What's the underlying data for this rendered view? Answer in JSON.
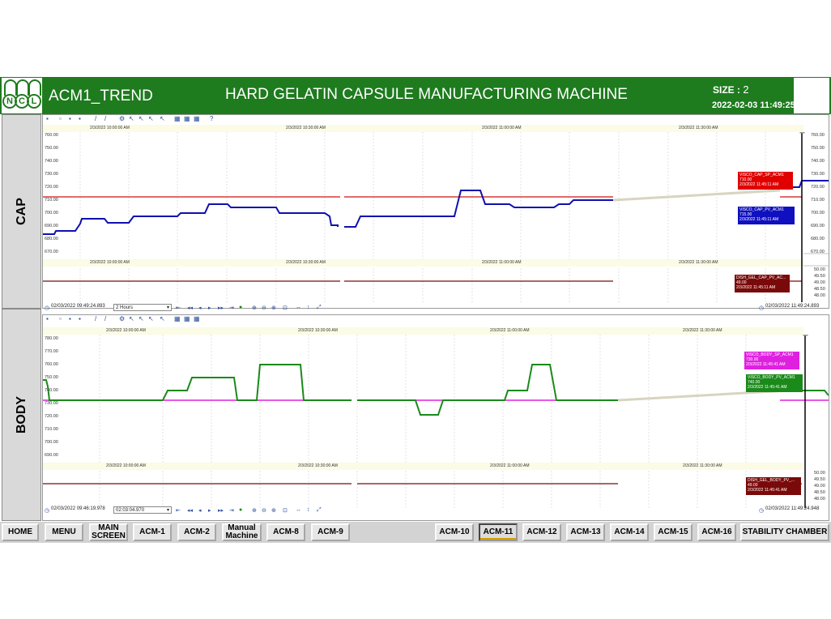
{
  "header": {
    "app_title": "ACM1_TREND",
    "machine_title": "HARD GELATIN CAPSULE MANUFACTURING MACHINE",
    "size_label": "SIZE :",
    "size_value": "2",
    "datetime": "2022-02-03 11:49:25",
    "logo_letters": [
      "N",
      "C",
      "L"
    ],
    "color": "#1e7b1e"
  },
  "cap": {
    "side_label": "CAP",
    "top_times": [
      "2/3/2022 10:00:00 AM",
      "2/3/2022 10:30:00 AM",
      "2/3/2022 11:00:00 AM",
      "2/3/2022 11:30:00 AM"
    ],
    "mid_times": [
      "2/3/2022 10:00:00 AM",
      "2/3/2022 10:30:00 AM",
      "2/3/2022 11:00:00 AM",
      "2/3/2022 11:30:00 AM"
    ],
    "y_left": [
      "760.00",
      "750.00",
      "740.00",
      "730.00",
      "720.00",
      "710.00",
      "700.00",
      "690.00",
      "680.00",
      "670.00"
    ],
    "y_right": [
      "760.00",
      "750.00",
      "740.00",
      "730.00",
      "720.00",
      "710.00",
      "700.00",
      "690.00",
      "680.00",
      "670.00"
    ],
    "y_right_small": [
      "50.00",
      "49.50",
      "49.00",
      "48.50",
      "48.00"
    ],
    "sp_tag": {
      "name": "VISCO_CAP_SP_ACM1",
      "value": "710.00",
      "time": "2/3/2022 11:45:11 AM",
      "color": "#e00000"
    },
    "pv_tag": {
      "name": "VISCO_CAP_PV_ACM1",
      "value": "715.00",
      "time": "2/3/2022 11:45:11 AM",
      "color": "#1010c0"
    },
    "dish_tag": {
      "name": "DISH_GEL_CAP_PV_AC...",
      "value": "49.00",
      "time": "2/3/2022 11:45:11 AM",
      "color": "#7a0a0a"
    },
    "start_time": "02/03/2022 09:49:24.893",
    "range": "2 Hours",
    "end_time": "02/03/2022 11:49:24.893"
  },
  "body": {
    "side_label": "BODY",
    "top_times": [
      "2/3/2022 10:00:00 AM",
      "2/3/2022 10:30:00 AM",
      "2/3/2022 11:00:00 AM",
      "2/3/2022 11:30:00 AM"
    ],
    "mid_times": [
      "2/3/2022 10:00:00 AM",
      "2/3/2022 10:30:00 AM",
      "2/3/2022 11:00:00 AM",
      "2/3/2022 11:30:00 AM"
    ],
    "y_left": [
      "780.00",
      "770.00",
      "760.00",
      "750.00",
      "740.00",
      "730.00",
      "720.00",
      "710.00",
      "700.00",
      "690.00"
    ],
    "y_right_small": [
      "50.00",
      "49.50",
      "49.00",
      "48.50",
      "48.00"
    ],
    "sp_tag": {
      "name": "VISCO_BODY_SP_ACM1",
      "value": "730.00",
      "time": "2/3/2022 11:45:41 AM",
      "color": "#e020e0"
    },
    "pv_tag": {
      "name": "VISCO_BODY_PV_ACM1",
      "value": "740.00",
      "time": "2/3/2022 11:45:41 AM",
      "color": "#1a8a1a"
    },
    "dish_tag": {
      "name": "DISH_GEL_BODY_PV_...",
      "value": "49.00",
      "time": "2/3/2022 11:45:41 AM",
      "color": "#7a0a0a"
    },
    "start_time": "02/03/2022 09:46:19.978",
    "range": "02:03:04.970",
    "end_time": "02/03/2022 11:49:24.948"
  },
  "nav": {
    "buttons": [
      {
        "label": "HOME"
      },
      {
        "label": "MENU"
      },
      {
        "label": "MAIN SCREEN"
      },
      {
        "label": "ACM-1"
      },
      {
        "label": "ACM-2"
      },
      {
        "label": "Manual Machine"
      },
      {
        "label": "ACM-8"
      },
      {
        "label": "ACM-9"
      },
      {
        "label": "ACM-10"
      },
      {
        "label": "ACM-11"
      },
      {
        "label": "ACM-12"
      },
      {
        "label": "ACM-13"
      },
      {
        "label": "ACM-14"
      },
      {
        "label": "ACM-15"
      },
      {
        "label": "ACM-16"
      },
      {
        "label": "STABILITY CHAMBER"
      }
    ],
    "active": "ACM-11"
  },
  "icons": [
    "save-icon",
    "copy-icon",
    "print-icon",
    "zoom-icon",
    "play-icon",
    "pause-icon",
    "settings-icon",
    "help-icon"
  ]
}
